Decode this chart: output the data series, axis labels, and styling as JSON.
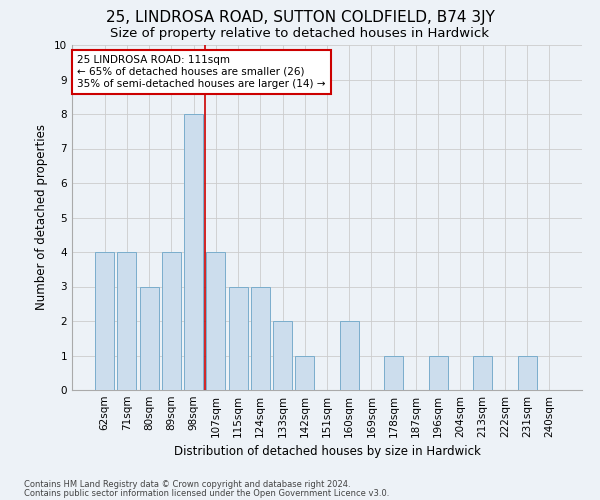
{
  "title": "25, LINDROSA ROAD, SUTTON COLDFIELD, B74 3JY",
  "subtitle": "Size of property relative to detached houses in Hardwick",
  "xlabel_bottom": "Distribution of detached houses by size in Hardwick",
  "ylabel": "Number of detached properties",
  "footer_line1": "Contains HM Land Registry data © Crown copyright and database right 2024.",
  "footer_line2": "Contains public sector information licensed under the Open Government Licence v3.0.",
  "categories": [
    "62sqm",
    "71sqm",
    "80sqm",
    "89sqm",
    "98sqm",
    "107sqm",
    "115sqm",
    "124sqm",
    "133sqm",
    "142sqm",
    "151sqm",
    "160sqm",
    "169sqm",
    "178sqm",
    "187sqm",
    "196sqm",
    "204sqm",
    "213sqm",
    "222sqm",
    "231sqm",
    "240sqm"
  ],
  "values": [
    4,
    4,
    3,
    4,
    8,
    4,
    3,
    3,
    2,
    1,
    0,
    2,
    0,
    1,
    0,
    1,
    0,
    1,
    0,
    1,
    0
  ],
  "bar_color": "#ccdded",
  "bar_edge_color": "#7aadcc",
  "annotation_text": "25 LINDROSA ROAD: 111sqm\n← 65% of detached houses are smaller (26)\n35% of semi-detached houses are larger (14) →",
  "annotation_box_color": "white",
  "annotation_box_edge_color": "#cc0000",
  "highlight_line_color": "#cc0000",
  "ylim": [
    0,
    10
  ],
  "yticks": [
    0,
    1,
    2,
    3,
    4,
    5,
    6,
    7,
    8,
    9,
    10
  ],
  "grid_color": "#cccccc",
  "background_color": "#edf2f7",
  "title_fontsize": 11,
  "subtitle_fontsize": 9.5,
  "ylabel_fontsize": 8.5,
  "xlabel_fontsize": 8.5,
  "tick_fontsize": 7.5,
  "annotation_fontsize": 7.5,
  "footer_fontsize": 6
}
